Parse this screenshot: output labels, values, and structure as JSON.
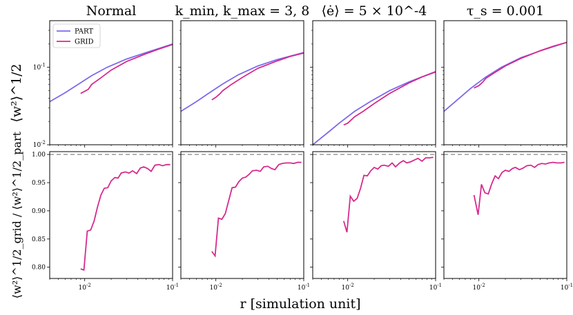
{
  "figure": {
    "xlabel": "r [simulation unit]",
    "ylabel_top": "⟨w²⟩^1/2",
    "ylabel_bottom": "⟨w²⟩^1/2_grid / ⟨w²⟩^1/2_part",
    "legend": [
      "PART",
      "GRID"
    ],
    "legend_placement": "top-left of first panel",
    "colors": {
      "PART": "#7b68ee",
      "GRID": "#d62a8c",
      "reference": "#a0a0a0"
    }
  },
  "chart_data": [
    {
      "type": "line",
      "panel": "top-1",
      "title": "Normal",
      "xscale": "log",
      "yscale": "log",
      "xlim": [
        0.004,
        0.1
      ],
      "ylim": [
        0.01,
        0.4
      ],
      "xticks": [],
      "yticks": [
        "10^-2",
        "10^-1"
      ],
      "series": [
        {
          "name": "PART",
          "x": [
            0.004,
            0.006,
            0.008,
            0.012,
            0.018,
            0.03,
            0.05,
            0.1
          ],
          "y": [
            0.036,
            0.047,
            0.058,
            0.078,
            0.1,
            0.128,
            0.155,
            0.2
          ]
        },
        {
          "name": "GRID",
          "x": [
            0.009,
            0.01,
            0.011,
            0.012,
            0.015,
            0.02,
            0.03,
            0.05,
            0.07,
            0.1
          ],
          "y": [
            0.046,
            0.049,
            0.052,
            0.06,
            0.072,
            0.092,
            0.119,
            0.15,
            0.172,
            0.197
          ]
        }
      ]
    },
    {
      "type": "line",
      "panel": "top-2",
      "title": "k_min, k_max = 3, 8",
      "xscale": "log",
      "yscale": "log",
      "xlim": [
        0.004,
        0.1
      ],
      "ylim": [
        0.01,
        0.4
      ],
      "xticks": [],
      "yticks": [],
      "series": [
        {
          "name": "PART",
          "x": [
            0.004,
            0.006,
            0.008,
            0.012,
            0.018,
            0.03,
            0.05,
            0.1
          ],
          "y": [
            0.027,
            0.036,
            0.045,
            0.061,
            0.08,
            0.104,
            0.126,
            0.155
          ]
        },
        {
          "name": "GRID",
          "x": [
            0.009,
            0.01,
            0.011,
            0.012,
            0.015,
            0.02,
            0.03,
            0.05,
            0.07,
            0.1
          ],
          "y": [
            0.038,
            0.041,
            0.045,
            0.05,
            0.06,
            0.074,
            0.097,
            0.121,
            0.138,
            0.153
          ]
        }
      ]
    },
    {
      "type": "line",
      "panel": "top-3",
      "title": "⟨ė⟩ = 5 × 10^-4",
      "xscale": "log",
      "yscale": "log",
      "xlim": [
        0.004,
        0.1
      ],
      "ylim": [
        0.01,
        0.4
      ],
      "xticks": [],
      "yticks": [],
      "series": [
        {
          "name": "PART",
          "x": [
            0.004,
            0.006,
            0.008,
            0.012,
            0.018,
            0.03,
            0.05,
            0.1
          ],
          "y": [
            0.01,
            0.0145,
            0.019,
            0.027,
            0.036,
            0.05,
            0.065,
            0.088
          ]
        },
        {
          "name": "GRID",
          "x": [
            0.009,
            0.01,
            0.011,
            0.012,
            0.015,
            0.02,
            0.03,
            0.05,
            0.07,
            0.1
          ],
          "y": [
            0.018,
            0.019,
            0.021,
            0.023,
            0.027,
            0.034,
            0.046,
            0.063,
            0.075,
            0.087
          ]
        }
      ]
    },
    {
      "type": "line",
      "panel": "top-4",
      "title": "τ_s = 0.001",
      "xscale": "log",
      "yscale": "log",
      "xlim": [
        0.004,
        0.1
      ],
      "ylim": [
        0.01,
        0.4
      ],
      "xticks": [],
      "yticks": [],
      "series": [
        {
          "name": "PART",
          "x": [
            0.004,
            0.006,
            0.008,
            0.012,
            0.018,
            0.03,
            0.05,
            0.1
          ],
          "y": [
            0.027,
            0.04,
            0.053,
            0.075,
            0.1,
            0.133,
            0.163,
            0.21
          ]
        },
        {
          "name": "GRID",
          "x": [
            0.0088,
            0.01,
            0.011,
            0.012,
            0.015,
            0.02,
            0.03,
            0.05,
            0.07,
            0.1
          ],
          "y": [
            0.054,
            0.058,
            0.064,
            0.072,
            0.085,
            0.104,
            0.13,
            0.164,
            0.187,
            0.21
          ]
        }
      ]
    },
    {
      "type": "line",
      "panel": "bottom-1",
      "xscale": "log",
      "yscale": "linear",
      "xlim": [
        0.004,
        0.1
      ],
      "ylim": [
        0.78,
        1.005
      ],
      "xticks": [
        "10^-2",
        "10^-1"
      ],
      "yticks": [
        "0.80",
        "0.85",
        "0.90",
        "0.95",
        "1.00"
      ],
      "reference": 1.0,
      "series": [
        {
          "name": "GRID",
          "x": [
            0.009,
            0.0098,
            0.0107,
            0.0117,
            0.0128,
            0.014,
            0.0153,
            0.0167,
            0.0183,
            0.02,
            0.022,
            0.024,
            0.026,
            0.029,
            0.032,
            0.035,
            0.039,
            0.043,
            0.047,
            0.052,
            0.057,
            0.063,
            0.07,
            0.077,
            0.085,
            0.094
          ],
          "y": [
            0.797,
            0.795,
            0.864,
            0.866,
            0.882,
            0.907,
            0.928,
            0.94,
            0.941,
            0.953,
            0.959,
            0.958,
            0.967,
            0.969,
            0.967,
            0.971,
            0.966,
            0.976,
            0.978,
            0.975,
            0.97,
            0.981,
            0.982,
            0.98,
            0.982,
            0.982
          ]
        }
      ]
    },
    {
      "type": "line",
      "panel": "bottom-2",
      "xscale": "log",
      "yscale": "linear",
      "xlim": [
        0.004,
        0.1
      ],
      "ylim": [
        0.78,
        1.005
      ],
      "xticks": [
        "10^-2",
        "10^-1"
      ],
      "yticks": [],
      "reference": 1.0,
      "series": [
        {
          "name": "GRID",
          "x": [
            0.009,
            0.0098,
            0.0107,
            0.0117,
            0.0128,
            0.014,
            0.0153,
            0.0167,
            0.0183,
            0.02,
            0.022,
            0.024,
            0.026,
            0.029,
            0.032,
            0.035,
            0.039,
            0.043,
            0.047,
            0.052,
            0.057,
            0.063,
            0.07,
            0.077,
            0.085,
            0.094
          ],
          "y": [
            0.828,
            0.82,
            0.887,
            0.885,
            0.895,
            0.918,
            0.941,
            0.942,
            0.952,
            0.958,
            0.96,
            0.965,
            0.971,
            0.972,
            0.97,
            0.978,
            0.979,
            0.975,
            0.973,
            0.982,
            0.984,
            0.985,
            0.985,
            0.984,
            0.986,
            0.986
          ]
        }
      ]
    },
    {
      "type": "line",
      "panel": "bottom-3",
      "xscale": "log",
      "yscale": "linear",
      "xlim": [
        0.004,
        0.1
      ],
      "ylim": [
        0.78,
        1.005
      ],
      "xticks": [
        "10^-2",
        "10^-1"
      ],
      "yticks": [],
      "reference": 1.0,
      "series": [
        {
          "name": "GRID",
          "x": [
            0.009,
            0.0098,
            0.0107,
            0.0117,
            0.0128,
            0.014,
            0.0153,
            0.0167,
            0.0183,
            0.02,
            0.022,
            0.024,
            0.026,
            0.029,
            0.032,
            0.035,
            0.039,
            0.043,
            0.047,
            0.052,
            0.057,
            0.063,
            0.07,
            0.077,
            0.085,
            0.094
          ],
          "y": [
            0.882,
            0.862,
            0.926,
            0.917,
            0.922,
            0.94,
            0.963,
            0.962,
            0.971,
            0.977,
            0.974,
            0.98,
            0.981,
            0.979,
            0.985,
            0.978,
            0.985,
            0.989,
            0.985,
            0.987,
            0.99,
            0.993,
            0.988,
            0.994,
            0.994,
            0.995
          ]
        }
      ]
    },
    {
      "type": "line",
      "panel": "bottom-4",
      "xscale": "log",
      "yscale": "linear",
      "xlim": [
        0.004,
        0.1
      ],
      "ylim": [
        0.78,
        1.005
      ],
      "xticks": [
        "10^-2",
        "10^-1"
      ],
      "yticks": [],
      "reference": 1.0,
      "series": [
        {
          "name": "GRID",
          "x": [
            0.0088,
            0.0098,
            0.0107,
            0.0117,
            0.0128,
            0.014,
            0.0153,
            0.0167,
            0.0183,
            0.02,
            0.022,
            0.024,
            0.026,
            0.029,
            0.032,
            0.035,
            0.039,
            0.043,
            0.047,
            0.052,
            0.057,
            0.063,
            0.07,
            0.077,
            0.085,
            0.094
          ],
          "y": [
            0.928,
            0.893,
            0.947,
            0.932,
            0.93,
            0.948,
            0.962,
            0.957,
            0.968,
            0.972,
            0.97,
            0.975,
            0.977,
            0.973,
            0.976,
            0.98,
            0.981,
            0.977,
            0.982,
            0.984,
            0.983,
            0.985,
            0.986,
            0.985,
            0.985,
            0.986
          ]
        }
      ]
    }
  ]
}
